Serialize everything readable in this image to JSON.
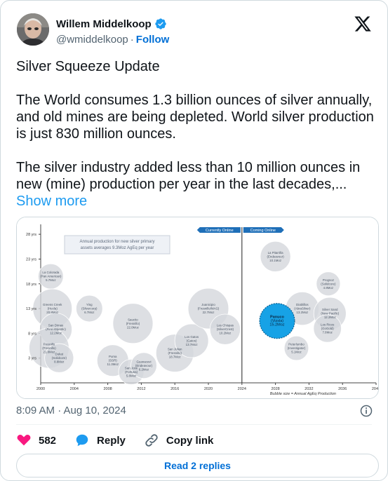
{
  "author": {
    "name": "Willem Middelkoop",
    "handle": "@wmiddelkoop",
    "separator": "·",
    "follow_label": "Follow"
  },
  "tweet": {
    "p1": "Silver Squeeze Update",
    "p2": "The World consumes 1.3 billion ounces of silver annually, and old mines are being depleted. World silver production is just 830 million ounces.",
    "p3": "The silver industry added less than 10 million ounces in new (mine) production per year in the last decades,...",
    "show_more": "Show more"
  },
  "chart": {
    "annotation": "Annual production for new silver primary assets averages 9.3Moz AgEq per year",
    "currently_online": "Currently Online",
    "coming_online": "Coming Online",
    "bubble_note": "Bubble size = Annual AgEq Production",
    "y_ticks": [
      "28 yrs",
      "23 yrs",
      "18 yrs",
      "13 yrs",
      "8 yrs",
      "3 yrs"
    ],
    "x_ticks": [
      "2000",
      "2004",
      "2008",
      "2012",
      "2016",
      "2020",
      "2024",
      "2028",
      "2032",
      "2036",
      "2040"
    ],
    "bubbles": [
      {
        "name": "La Colorada",
        "owner": "(Pan American)",
        "moz": "5.7Moz",
        "year": 2001.2,
        "life": 19.5
      },
      {
        "name": "Greens Creek",
        "owner": "(Hecla)",
        "moz": "20.8Moz",
        "year": 2001.4,
        "life": 13.0
      },
      {
        "name": "San Dimas",
        "owner": "(First Majestic)",
        "moz": "12.2Moz",
        "year": 2001.8,
        "life": 8.8
      },
      {
        "name": "Fresnillo",
        "owner": "(Fresnillo)",
        "moz": "21.8Moz",
        "year": 2001.0,
        "life": 5.0
      },
      {
        "name": "Dukat",
        "owner": "(Solidcore)",
        "moz": "8.8Moz",
        "year": 2002.2,
        "life": 3.0
      },
      {
        "name": "Ying",
        "owner": "(Silvercorp)",
        "moz": "6.7Moz",
        "year": 2005.8,
        "life": 13.0
      },
      {
        "name": "Saucito",
        "owner": "(Fresnillo)",
        "moz": "22.0Moz",
        "year": 2011.0,
        "life": 10.0
      },
      {
        "name": "Puma",
        "owner": "(SSR)",
        "moz": "11.3Moz",
        "year": 2008.6,
        "life": 2.5
      },
      {
        "name": "San Jose",
        "owner": "(Fortuna)",
        "moz": "5.8Moz",
        "year": 2010.8,
        "life": 0.2
      },
      {
        "name": "Guanacevi",
        "owner": "(Endeavour)",
        "moz": "6.2Moz",
        "year": 2012.3,
        "life": 1.5
      },
      {
        "name": "San Julian",
        "owner": "(Fresnillo)",
        "moz": "18.7Moz",
        "year": 2016.0,
        "life": 4.0
      },
      {
        "name": "Los Gatos",
        "owner": "(Gatos)",
        "moz": "13.7Moz",
        "year": 2018.0,
        "life": 6.5
      },
      {
        "name": "Juanicipio",
        "owner": "(Fresnillo/MAG)",
        "moz": "22.7Moz",
        "year": 2020.0,
        "life": 13.0
      },
      {
        "name": "Las Chispas",
        "owner": "(SilverCrest)",
        "moz": "10.2Moz",
        "year": 2022.0,
        "life": 8.8
      },
      {
        "name": "La Pitarrilla",
        "owner": "(Endeavour)",
        "moz": "10.1Moz",
        "year": 2028.0,
        "life": 23.5
      },
      {
        "name": "Diablillos",
        "owner": "(AbraSilver)",
        "moz": "13.2Moz",
        "year": 2031.2,
        "life": 13.0
      },
      {
        "name": "Panuco",
        "owner": "(Vizsla)",
        "moz": "15.2Moz",
        "year": 2028.2,
        "life": 10.5,
        "highlight": true
      },
      {
        "name": "Peterlumbo",
        "owner": "(Investigator)",
        "moz": "5.1Moz",
        "year": 2030.5,
        "life": 5.0
      },
      {
        "name": "Prognoz",
        "owner": "(Solidcore)",
        "moz": "4.8Moz",
        "year": 2034.3,
        "life": 18.0
      },
      {
        "name": "Silver Sand",
        "owner": "(New Pacific)",
        "moz": "12.2Moz",
        "year": 2034.5,
        "life": 12.0
      },
      {
        "name": "Los Ricos",
        "owner": "(GoGold)",
        "moz": "7.8Moz",
        "year": 2034.2,
        "life": 9.0
      }
    ]
  },
  "meta": {
    "timestamp": "8:09 AM · Aug 10, 2024"
  },
  "actions": {
    "likes": "582",
    "reply_label": "Reply",
    "copy_link_label": "Copy link"
  },
  "read_replies_label": "Read 2 replies",
  "colors": {
    "accent": "#1d9bf0",
    "like": "#f91880",
    "follow": "#006fd6"
  }
}
